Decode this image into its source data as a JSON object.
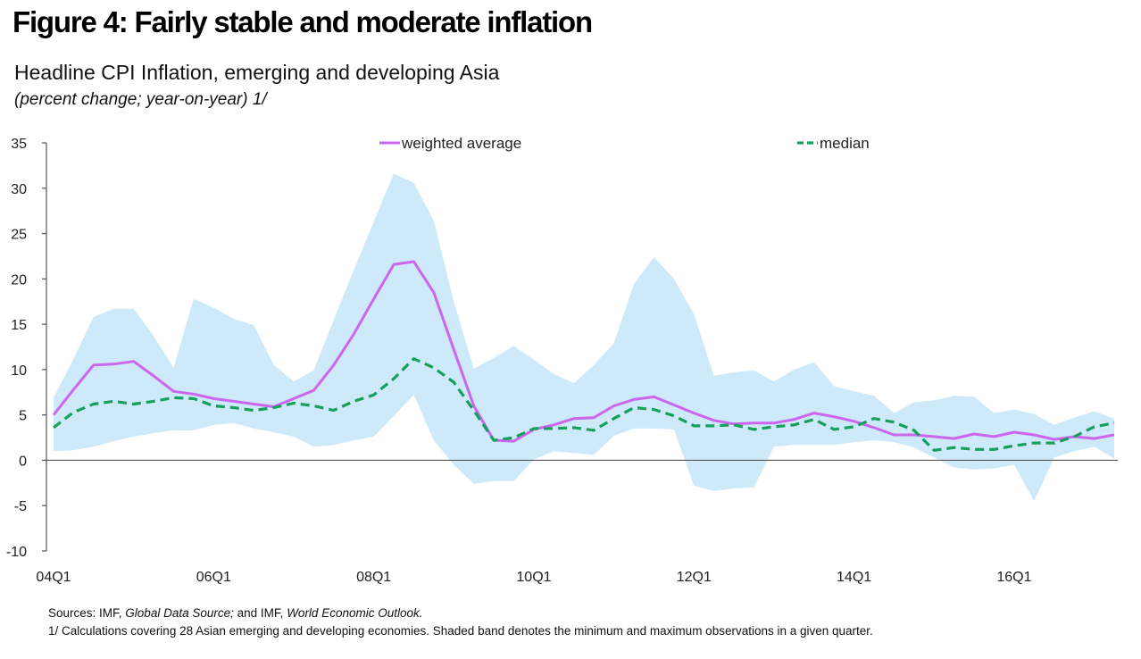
{
  "figure_title": "Figure 4: Fairly stable and moderate inflation",
  "colors": {
    "weighted": "#cc66ee",
    "median": "#16a05a",
    "band": "#cde9fa",
    "axis": "#555555"
  },
  "chart_data": {
    "type": "line",
    "title": "Headline CPI Inflation, emerging and developing Asia",
    "subtitle": "(percent change; year-on-year) 1/",
    "xlabel": "",
    "ylabel": "",
    "ylim": [
      -10,
      35
    ],
    "yticks": [
      -10,
      -5,
      0,
      5,
      10,
      15,
      20,
      25,
      30,
      35
    ],
    "grid": false,
    "legend_position": "top",
    "categories": [
      "04Q1",
      "04Q2",
      "04Q3",
      "04Q4",
      "05Q1",
      "05Q2",
      "05Q3",
      "05Q4",
      "06Q1",
      "06Q2",
      "06Q3",
      "06Q4",
      "07Q1",
      "07Q2",
      "07Q3",
      "07Q4",
      "08Q1",
      "08Q2",
      "08Q3",
      "08Q4",
      "09Q1",
      "09Q2",
      "09Q3",
      "09Q4",
      "10Q1",
      "10Q2",
      "10Q3",
      "10Q4",
      "11Q1",
      "11Q2",
      "11Q3",
      "11Q4",
      "12Q1",
      "12Q2",
      "12Q3",
      "12Q4",
      "13Q1",
      "13Q2",
      "13Q3",
      "13Q4",
      "14Q1",
      "14Q2",
      "14Q3",
      "14Q4",
      "15Q1",
      "15Q2",
      "15Q3",
      "15Q4",
      "16Q1",
      "16Q2",
      "16Q3",
      "16Q4",
      "17Q1",
      "17Q2"
    ],
    "xtick_labels": [
      {
        "index": 0,
        "label": "04Q1"
      },
      {
        "index": 8,
        "label": "06Q1"
      },
      {
        "index": 16,
        "label": "08Q1"
      },
      {
        "index": 24,
        "label": "10Q1"
      },
      {
        "index": 32,
        "label": "12Q1"
      },
      {
        "index": 40,
        "label": "14Q1"
      },
      {
        "index": 48,
        "label": "16Q1"
      }
    ],
    "series": [
      {
        "name": "weighted average",
        "style": "solid",
        "values": [
          5.0,
          7.8,
          10.5,
          10.6,
          10.9,
          9.3,
          7.6,
          7.3,
          6.8,
          6.5,
          6.2,
          5.9,
          6.8,
          7.7,
          10.5,
          13.9,
          17.8,
          21.6,
          21.9,
          18.5,
          12.2,
          6.0,
          2.2,
          2.1,
          3.4,
          3.9,
          4.6,
          4.7,
          6.0,
          6.7,
          7.0,
          6.1,
          5.2,
          4.4,
          4.0,
          4.1,
          4.1,
          4.5,
          5.2,
          4.8,
          4.3,
          3.6,
          2.8,
          2.8,
          2.6,
          2.4,
          2.9,
          2.6,
          3.1,
          2.8,
          2.3,
          2.6,
          2.4,
          2.8
        ]
      },
      {
        "name": "median",
        "style": "dashed",
        "values": [
          3.6,
          5.3,
          6.2,
          6.5,
          6.2,
          6.5,
          6.9,
          6.8,
          6.0,
          5.8,
          5.5,
          5.8,
          6.3,
          6.0,
          5.5,
          6.5,
          7.2,
          9.0,
          11.2,
          10.2,
          8.6,
          5.5,
          2.2,
          2.5,
          3.5,
          3.5,
          3.6,
          3.3,
          4.6,
          5.8,
          5.6,
          4.9,
          3.8,
          3.8,
          3.9,
          3.4,
          3.7,
          3.9,
          4.5,
          3.4,
          3.7,
          4.6,
          4.2,
          3.3,
          1.1,
          1.4,
          1.2,
          1.2,
          1.6,
          1.9,
          1.9,
          2.6,
          3.7,
          4.1
        ]
      },
      {
        "name": "minimum",
        "style": "band-lower",
        "values": [
          1.0,
          1.1,
          1.5,
          2.1,
          2.6,
          3.0,
          3.3,
          3.3,
          3.9,
          4.1,
          3.5,
          3.1,
          2.6,
          1.5,
          1.7,
          2.2,
          2.6,
          4.9,
          7.2,
          2.2,
          -0.5,
          -2.6,
          -2.3,
          -2.3,
          0.1,
          1.0,
          0.8,
          0.6,
          2.7,
          3.5,
          3.5,
          3.4,
          -2.8,
          -3.4,
          -3.1,
          -3.0,
          1.5,
          1.7,
          1.7,
          1.7,
          2.0,
          2.2,
          2.0,
          1.4,
          0.3,
          -0.8,
          -1.0,
          -0.9,
          -0.5,
          -4.5,
          0.3,
          1.0,
          1.5,
          0.2
        ]
      },
      {
        "name": "maximum",
        "style": "band-upper",
        "values": [
          6.9,
          11.2,
          15.8,
          16.7,
          16.7,
          13.7,
          10.2,
          17.8,
          16.8,
          15.6,
          14.9,
          10.5,
          8.7,
          9.9,
          15.5,
          21.0,
          26.3,
          31.6,
          30.6,
          26.4,
          17.5,
          10.1,
          11.3,
          12.6,
          11.1,
          9.5,
          8.5,
          10.5,
          12.9,
          19.4,
          22.4,
          20.0,
          16.1,
          9.3,
          9.7,
          9.9,
          8.7,
          10.0,
          10.8,
          8.2,
          7.6,
          7.1,
          5.2,
          6.4,
          6.6,
          7.1,
          7.0,
          5.2,
          5.6,
          5.1,
          3.9,
          4.7,
          5.4,
          4.6
        ]
      }
    ],
    "legend": [
      {
        "label": "weighted average",
        "series": "weighted average"
      },
      {
        "label": "median",
        "series": "median"
      }
    ]
  },
  "notes": {
    "sources_prefix": "Sources: IMF,",
    "source1": "Global Data Source;",
    "sources_mid": "and IMF,",
    "source2": "World Economic Outlook.",
    "footnote": "1/ Calculations covering 28 Asian emerging and developing economies. Shaded band denotes the minimum and maximum observations in a given quarter."
  }
}
